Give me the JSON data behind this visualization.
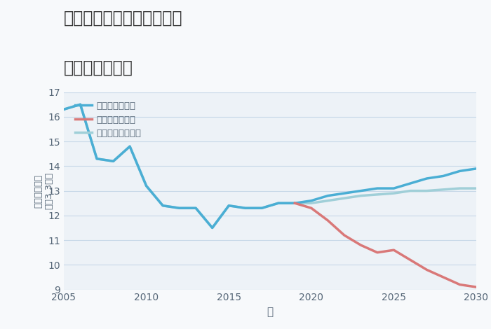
{
  "title_line1": "三重県桑名市長島町大倉の",
  "title_line2": "土地の価格推移",
  "xlabel": "年",
  "ylabel_top": "単価（万円）",
  "ylabel_bottom": "坪（3.3㎡）",
  "fig_bg_color": "#f7f9fb",
  "plot_bg_color": "#edf2f7",
  "grid_color": "#c8d8e8",
  "good_scenario": {
    "label": "グッドシナリオ",
    "color": "#4aaed4",
    "linewidth": 2.5,
    "x": [
      2005,
      2006,
      2007,
      2008,
      2009,
      2010,
      2011,
      2012,
      2013,
      2014,
      2015,
      2016,
      2017,
      2018,
      2019,
      2020,
      2021,
      2022,
      2023,
      2024,
      2025,
      2026,
      2027,
      2028,
      2029,
      2030
    ],
    "y": [
      16.3,
      16.5,
      14.3,
      14.2,
      14.8,
      13.2,
      12.4,
      12.3,
      12.3,
      11.5,
      12.4,
      12.3,
      12.3,
      12.5,
      12.5,
      12.6,
      12.8,
      12.9,
      13.0,
      13.1,
      13.1,
      13.3,
      13.5,
      13.6,
      13.8,
      13.9
    ]
  },
  "bad_scenario": {
    "label": "バッドシナリオ",
    "color": "#d97878",
    "linewidth": 2.5,
    "x": [
      2019,
      2020,
      2021,
      2022,
      2023,
      2024,
      2025,
      2026,
      2027,
      2028,
      2029,
      2030
    ],
    "y": [
      12.5,
      12.3,
      11.8,
      11.2,
      10.8,
      10.5,
      10.6,
      10.2,
      9.8,
      9.5,
      9.2,
      9.1
    ]
  },
  "normal_scenario": {
    "label": "ノーマルシナリオ",
    "color": "#a0cfd8",
    "linewidth": 2.5,
    "x": [
      2005,
      2006,
      2007,
      2008,
      2009,
      2010,
      2011,
      2012,
      2013,
      2014,
      2015,
      2016,
      2017,
      2018,
      2019,
      2020,
      2021,
      2022,
      2023,
      2024,
      2025,
      2026,
      2027,
      2028,
      2029,
      2030
    ],
    "y": [
      16.3,
      16.5,
      14.3,
      14.2,
      14.8,
      13.2,
      12.4,
      12.3,
      12.3,
      11.5,
      12.4,
      12.3,
      12.3,
      12.5,
      12.5,
      12.5,
      12.6,
      12.7,
      12.8,
      12.85,
      12.9,
      13.0,
      13.0,
      13.05,
      13.1,
      13.1
    ]
  },
  "ylim": [
    9,
    17
  ],
  "xlim": [
    2005,
    2030
  ],
  "yticks": [
    9,
    10,
    11,
    12,
    13,
    14,
    15,
    16,
    17
  ],
  "xticks": [
    2005,
    2010,
    2015,
    2020,
    2025,
    2030
  ],
  "tick_labelsize": 10,
  "tick_color": "#556677"
}
